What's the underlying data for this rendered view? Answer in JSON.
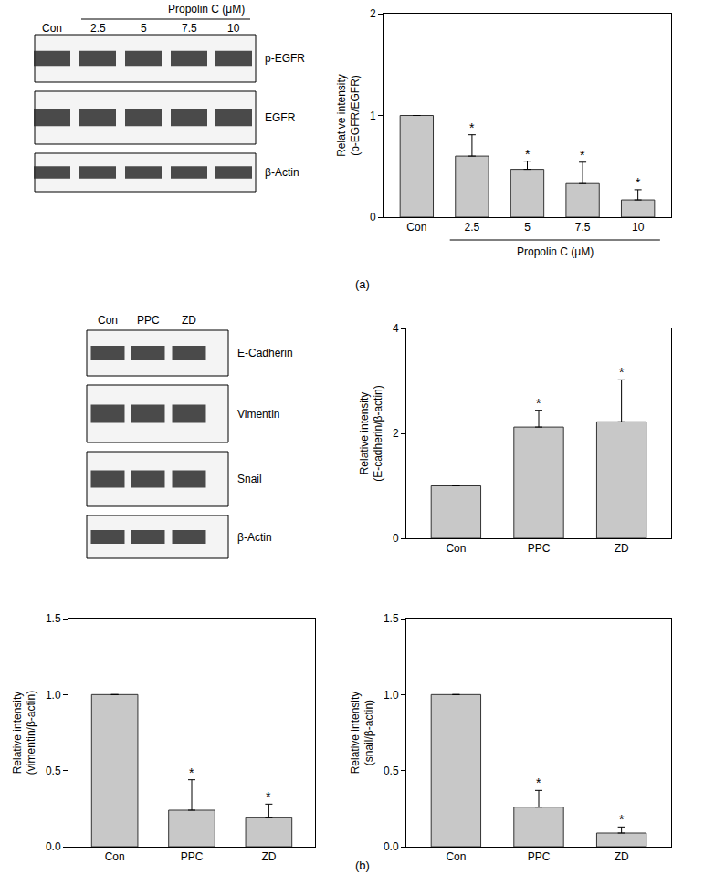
{
  "chart_data": [
    {
      "type": "bar",
      "categories": [
        "Con",
        "2.5",
        "5",
        "7.5",
        "10"
      ],
      "values": [
        1,
        0.6,
        0.47,
        0.33,
        0.17
      ],
      "errors": [
        0,
        0.21,
        0.08,
        0.21,
        0.1
      ],
      "significance": [
        null,
        "*",
        "*",
        "*",
        "*"
      ],
      "ylabel": [
        "Relative intensity",
        "(p-EGFR/EGFR)"
      ],
      "xgroup": {
        "label": "Propolin C (μM)",
        "from": "2.5",
        "to": "10"
      },
      "ylim": [
        0,
        2
      ],
      "yticks": [
        0,
        1,
        2
      ],
      "color": "#c8c8c8",
      "grid": false
    },
    {
      "type": "bar",
      "categories": [
        "Con",
        "PPC",
        "ZD"
      ],
      "values": [
        1,
        2.12,
        2.22
      ],
      "errors": [
        0,
        0.32,
        0.8
      ],
      "significance": [
        null,
        "*",
        "*"
      ],
      "ylabel": [
        "Relative intensity",
        "(E-cadherin/β-actin)"
      ],
      "ylim": [
        0,
        4
      ],
      "yticks": [
        0,
        2,
        4
      ],
      "color": "#c8c8c8",
      "grid": false
    },
    {
      "type": "bar",
      "categories": [
        "Con",
        "PPC",
        "ZD"
      ],
      "values": [
        1,
        0.24,
        0.19
      ],
      "errors": [
        0,
        0.2,
        0.09
      ],
      "significance": [
        null,
        "*",
        "*"
      ],
      "ylabel": [
        "Relative intensity",
        "(vimentin/β-actin)"
      ],
      "ylim": [
        0,
        1.5
      ],
      "yticks": [
        {
          "value": 0,
          "label": "0.0"
        },
        {
          "value": 0.5,
          "label": "0.5"
        },
        {
          "value": 1,
          "label": "1.0"
        },
        {
          "value": 1.5,
          "label": "1.5"
        }
      ],
      "color": "#c8c8c8",
      "grid": false
    },
    {
      "type": "bar",
      "categories": [
        "Con",
        "PPC",
        "ZD"
      ],
      "values": [
        1,
        0.26,
        0.09
      ],
      "errors": [
        0,
        0.11,
        0.04
      ],
      "significance": [
        null,
        "*",
        "*"
      ],
      "ylabel": [
        "Relative intensity",
        "(snail/β-actin)"
      ],
      "ylim": [
        0,
        1.5
      ],
      "yticks": [
        {
          "value": 0,
          "label": "0.0"
        },
        {
          "value": 0.5,
          "label": "0.5"
        },
        {
          "value": 1,
          "label": "1.0"
        },
        {
          "value": 1.5,
          "label": "1.5"
        }
      ],
      "color": "#c8c8c8",
      "grid": false
    }
  ],
  "blots": [
    {
      "header": {
        "label": "Propolin C (μM)",
        "from": "2.5",
        "to": "10"
      },
      "lanes": [
        "Con",
        "2.5",
        "5",
        "7.5",
        "10"
      ],
      "rows": [
        "p-EGFR",
        "EGFR",
        "β-Actin"
      ]
    },
    {
      "lanes": [
        "Con",
        "PPC",
        "ZD"
      ],
      "rows": [
        "E-Cadherin",
        "Vimentin",
        "Snail",
        "β-Actin"
      ]
    }
  ],
  "panel_labels": [
    "(a)",
    "(b)"
  ]
}
